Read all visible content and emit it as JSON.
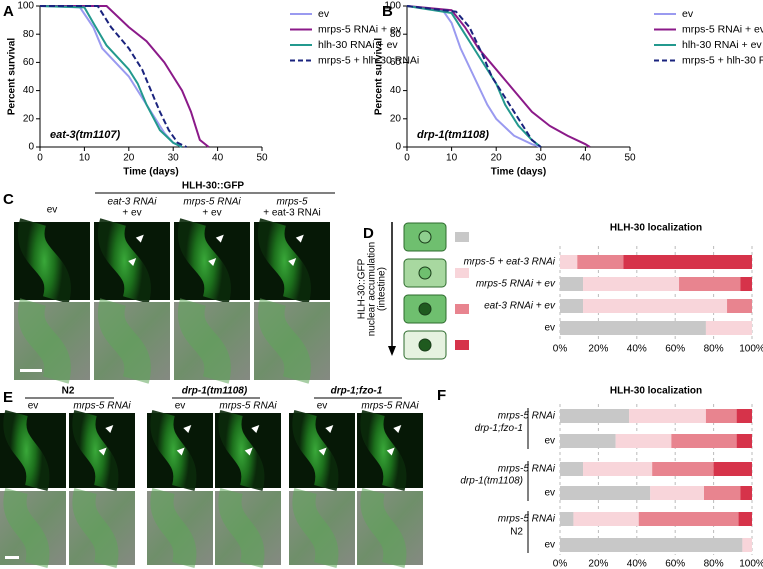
{
  "chart_data": [
    {
      "type": "line",
      "annotation": "eat-3(tm1107)",
      "xlabel": "Time (days)",
      "ylabel": "Percent survival",
      "xlim": [
        0,
        50
      ],
      "xticks": [
        0,
        10,
        20,
        30,
        40,
        50
      ],
      "ylim": [
        0,
        100
      ],
      "yticks": [
        0,
        20,
        40,
        60,
        80,
        100
      ],
      "series": [
        {
          "name": "ev",
          "color": "#9a9af0",
          "style": "solid",
          "x": [
            0,
            9,
            12,
            14,
            20,
            22,
            25,
            28,
            30,
            32
          ],
          "values": [
            100,
            99,
            85,
            70,
            50,
            40,
            25,
            10,
            3,
            0
          ]
        },
        {
          "name": "mrps-5 RNAi + ev",
          "color": "#8b1a89",
          "style": "solid",
          "x": [
            0,
            15,
            20,
            24,
            28,
            30,
            32,
            34,
            36,
            38
          ],
          "values": [
            100,
            100,
            85,
            75,
            60,
            50,
            40,
            25,
            5,
            0
          ]
        },
        {
          "name": "hlh-30 RNAi + ev",
          "color": "#23998e",
          "style": "solid",
          "x": [
            0,
            10,
            12,
            15,
            20,
            22,
            24,
            27,
            30,
            32
          ],
          "values": [
            100,
            99,
            88,
            72,
            55,
            45,
            30,
            12,
            3,
            0
          ]
        },
        {
          "name": "mrps-5 + hlh-30 RNAi",
          "color": "#1a237e",
          "style": "dashed",
          "x": [
            0,
            13,
            16,
            20,
            23,
            25,
            27,
            29,
            31,
            33
          ],
          "values": [
            100,
            100,
            85,
            70,
            55,
            40,
            25,
            12,
            3,
            0
          ]
        }
      ]
    },
    {
      "type": "line",
      "annotation": "drp-1(tm1108)",
      "xlabel": "Time (days)",
      "ylabel": "Percent survival",
      "xlim": [
        0,
        50
      ],
      "xticks": [
        0,
        10,
        20,
        30,
        40,
        50
      ],
      "ylim": [
        0,
        100
      ],
      "yticks": [
        0,
        20,
        40,
        60,
        80,
        100
      ],
      "series": [
        {
          "name": "ev",
          "color": "#9a9af0",
          "style": "solid",
          "x": [
            0,
            8,
            10,
            12,
            15,
            18,
            20,
            24,
            28,
            30
          ],
          "values": [
            100,
            97,
            88,
            70,
            50,
            30,
            20,
            8,
            2,
            0
          ]
        },
        {
          "name": "mrps-5 RNAi + ev",
          "color": "#8b1a89",
          "style": "solid",
          "x": [
            0,
            10,
            13,
            16,
            20,
            24,
            28,
            32,
            36,
            40,
            41
          ],
          "values": [
            100,
            97,
            85,
            70,
            55,
            40,
            25,
            15,
            8,
            2,
            0
          ]
        },
        {
          "name": "hlh-30 RNAi + ev",
          "color": "#23998e",
          "style": "solid",
          "x": [
            0,
            10,
            13,
            16,
            20,
            22,
            25,
            28,
            30
          ],
          "values": [
            100,
            95,
            80,
            65,
            45,
            30,
            15,
            5,
            0
          ]
        },
        {
          "name": "mrps-5 + hlh-30 RNAi",
          "color": "#1a237e",
          "style": "dashed",
          "x": [
            0,
            11,
            14,
            17,
            19,
            22,
            25,
            28,
            30
          ],
          "values": [
            100,
            96,
            85,
            65,
            50,
            35,
            20,
            5,
            0
          ]
        }
      ]
    },
    {
      "type": "hbar-stacked",
      "title": "HLH-30 localization",
      "categories": [
        "mrps-5 + eat-3 RNAi",
        "mrps-5 RNAi + ev",
        "eat-3 RNAi + ev",
        "ev"
      ],
      "xlim": [
        0,
        100
      ],
      "xticks": [
        {
          "value": 0,
          "label": "0%"
        },
        {
          "value": 20,
          "label": "20%"
        },
        {
          "value": 40,
          "label": "40%"
        },
        {
          "value": 60,
          "label": "60%"
        },
        {
          "value": 80,
          "label": "80%"
        },
        {
          "value": 100,
          "label": "100%"
        }
      ],
      "grid": true,
      "series": [
        {
          "color": "#c8c8c8",
          "values": [
            0,
            12,
            12,
            76
          ]
        },
        {
          "color": "#f8d5da",
          "values": [
            9,
            50,
            75,
            24
          ]
        },
        {
          "color": "#e8848f",
          "values": [
            24,
            32,
            13,
            0
          ]
        },
        {
          "color": "#d6334a",
          "values": [
            67,
            6,
            0,
            0
          ]
        }
      ]
    },
    {
      "type": "hbar-stacked",
      "title": "HLH-30 localization",
      "categories": [
        "mrps-5 RNAi",
        "ev",
        "mrps-5 RNAi",
        "ev",
        "mrps-5 RNAi",
        "ev"
      ],
      "group_labels": [
        "drp-1;fzo-1",
        "drp-1(tm1108)",
        "N2"
      ],
      "xlim": [
        0,
        100
      ],
      "xticks": [
        {
          "value": 0,
          "label": "0%"
        },
        {
          "value": 20,
          "label": "20%"
        },
        {
          "value": 40,
          "label": "40%"
        },
        {
          "value": 60,
          "label": "60%"
        },
        {
          "value": 80,
          "label": "80%"
        },
        {
          "value": 100,
          "label": "100%"
        }
      ],
      "grid": true,
      "series": [
        {
          "color": "#c8c8c8",
          "values": [
            36,
            29,
            12,
            47,
            7,
            95
          ]
        },
        {
          "color": "#f8d5da",
          "values": [
            40,
            29,
            36,
            28,
            34,
            5
          ]
        },
        {
          "color": "#e8848f",
          "values": [
            16,
            34,
            32,
            19,
            52,
            0
          ]
        },
        {
          "color": "#d6334a",
          "values": [
            8,
            8,
            20,
            6,
            7,
            0
          ]
        }
      ]
    }
  ],
  "figure": {
    "letters": [
      "A",
      "B",
      "C",
      "D",
      "E",
      "F"
    ],
    "c_header": "HLH-30::GFP",
    "c_columns": [
      [
        "ev"
      ],
      [
        "eat-3 RNAi",
        "+ ev"
      ],
      [
        "mrps-5 RNAi",
        "+ ev"
      ],
      [
        "mrps-5",
        "+ eat-3 RNAi"
      ]
    ],
    "d_axis_label": [
      "HLH-30::GFP",
      "nuclear accumulation",
      "(intestine)"
    ],
    "e_groups": [
      {
        "label": "N2",
        "columns": [
          "ev",
          "mrps-5 RNAi"
        ]
      },
      {
        "label": "drp-1(tm1108)",
        "columns": [
          "ev",
          "mrps-5 RNAi"
        ]
      },
      {
        "label": "drp-1;fzo-1",
        "columns": [
          "ev",
          "mrps-5 RNAi"
        ]
      }
    ]
  }
}
